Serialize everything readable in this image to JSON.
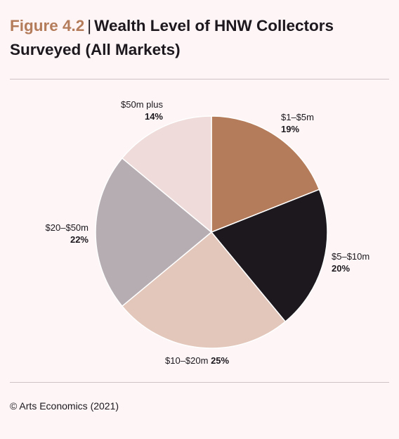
{
  "figure": {
    "number": "Figure 4.2",
    "title_line1": "Wealth Level of HNW Collectors",
    "title_line2": "Surveyed (All Markets)"
  },
  "source": "© Arts Economics (2021)",
  "colors": {
    "accent": "#b47c5a",
    "background": "#fdf5f6",
    "rule": "#cfc3c6"
  },
  "chart_data": {
    "type": "pie",
    "categories": [
      "$1–$5m",
      "$5–$10m",
      "$10–$20m",
      "$20–$50m",
      "$50m plus"
    ],
    "values": [
      19,
      20,
      25,
      22,
      14
    ],
    "labels": [
      "19%",
      "20%",
      "25%",
      "22%",
      "14%"
    ],
    "colors": [
      "#b47c5a",
      "#1c181d",
      "#e3c7bb",
      "#b6adb2",
      "#efdcda"
    ],
    "start": "12 o'clock, clockwise"
  }
}
